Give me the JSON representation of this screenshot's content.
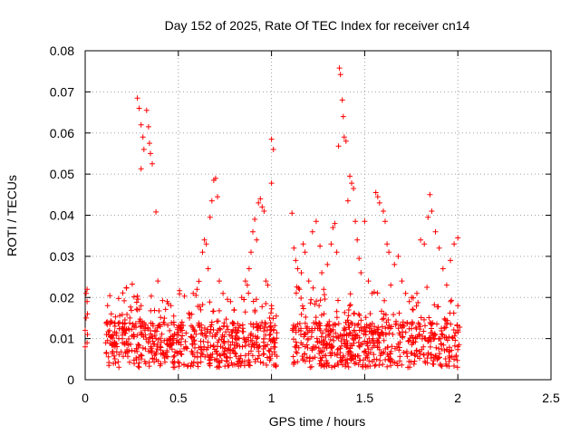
{
  "chart_data": {
    "type": "scatter",
    "title": "Day 152 of 2025, Rate Of TEC Index for receiver cn14",
    "xlabel": "GPS time / hours",
    "ylabel": "ROTI / TECUs",
    "xlim": [
      0,
      2.5
    ],
    "ylim": [
      0,
      0.08
    ],
    "xticks": [
      0,
      0.5,
      1,
      1.5,
      2,
      2.5
    ],
    "xtick_labels": [
      "0",
      "0.5",
      "1",
      "1.5",
      "2",
      "2.5"
    ],
    "yticks": [
      0,
      0.01,
      0.02,
      0.03,
      0.04,
      0.05,
      0.06,
      0.07,
      0.08
    ],
    "ytick_labels": [
      "0",
      "0.01",
      "0.02",
      "0.03",
      "0.04",
      "0.05",
      "0.06",
      "0.07",
      "0.08"
    ],
    "grid": true,
    "marker": "+",
    "series": [
      {
        "name": "cn14",
        "color": "#ff0000",
        "points": [
          [
            0.0,
            0.008
          ],
          [
            0.0,
            0.012
          ],
          [
            0.005,
            0.015
          ],
          [
            0.005,
            0.021
          ],
          [
            0.01,
            0.022
          ],
          [
            0.01,
            0.019
          ],
          [
            0.01,
            0.009
          ],
          [
            0.012,
            0.016
          ],
          [
            0.012,
            0.011
          ],
          [
            0.12,
            0.018
          ],
          [
            0.14,
            0.016
          ],
          [
            0.16,
            0.013
          ],
          [
            0.18,
            0.01
          ],
          [
            0.2,
            0.009
          ],
          [
            0.22,
            0.012
          ],
          [
            0.24,
            0.015
          ],
          [
            0.26,
            0.011
          ],
          [
            0.28,
            0.017
          ],
          [
            0.3,
            0.018
          ],
          [
            0.32,
            0.012
          ],
          [
            0.34,
            0.009
          ],
          [
            0.36,
            0.007
          ],
          [
            0.38,
            0.01
          ],
          [
            0.28,
            0.0685
          ],
          [
            0.29,
            0.066
          ],
          [
            0.3,
            0.062
          ],
          [
            0.31,
            0.059
          ],
          [
            0.315,
            0.056
          ],
          [
            0.3,
            0.0513
          ],
          [
            0.33,
            0.0655
          ],
          [
            0.34,
            0.0615
          ],
          [
            0.345,
            0.0575
          ],
          [
            0.35,
            0.055
          ],
          [
            0.36,
            0.0525
          ],
          [
            0.38,
            0.0408
          ],
          [
            0.39,
            0.024
          ],
          [
            0.42,
            0.014
          ],
          [
            0.44,
            0.019
          ],
          [
            0.46,
            0.018
          ],
          [
            0.48,
            0.011
          ],
          [
            0.5,
            0.009
          ],
          [
            0.52,
            0.012
          ],
          [
            0.54,
            0.008
          ],
          [
            0.56,
            0.015
          ],
          [
            0.58,
            0.021
          ],
          [
            0.6,
            0.022
          ],
          [
            0.62,
            0.017
          ],
          [
            0.63,
            0.031
          ],
          [
            0.64,
            0.034
          ],
          [
            0.65,
            0.033
          ],
          [
            0.66,
            0.027
          ],
          [
            0.67,
            0.0395
          ],
          [
            0.68,
            0.0435
          ],
          [
            0.69,
            0.0485
          ],
          [
            0.7,
            0.049
          ],
          [
            0.71,
            0.0445
          ],
          [
            0.72,
            0.024
          ],
          [
            0.74,
            0.021
          ],
          [
            0.76,
            0.013
          ],
          [
            0.78,
            0.019
          ],
          [
            0.8,
            0.017
          ],
          [
            0.82,
            0.012
          ],
          [
            0.84,
            0.02
          ],
          [
            0.86,
            0.024
          ],
          [
            0.87,
            0.023
          ],
          [
            0.88,
            0.027
          ],
          [
            0.89,
            0.031
          ],
          [
            0.9,
            0.036
          ],
          [
            0.91,
            0.039
          ],
          [
            0.92,
            0.034
          ],
          [
            0.93,
            0.043
          ],
          [
            0.94,
            0.044
          ],
          [
            0.95,
            0.042
          ],
          [
            0.96,
            0.041
          ],
          [
            0.97,
            0.024
          ],
          [
            0.98,
            0.023
          ],
          [
            0.99,
            0.015
          ],
          [
            1.0,
            0.0585
          ],
          [
            1.01,
            0.056
          ],
          [
            1.0,
            0.0478
          ],
          [
            1.0,
            0.018
          ],
          [
            1.01,
            0.012
          ],
          [
            1.02,
            0.009
          ],
          [
            1.11,
            0.0405
          ],
          [
            1.12,
            0.032
          ],
          [
            1.13,
            0.029
          ],
          [
            1.14,
            0.027
          ],
          [
            1.15,
            0.022
          ],
          [
            1.16,
            0.026
          ],
          [
            1.17,
            0.033
          ],
          [
            1.18,
            0.031
          ],
          [
            1.2,
            0.024
          ],
          [
            1.22,
            0.036
          ],
          [
            1.24,
            0.0385
          ],
          [
            1.26,
            0.0325
          ],
          [
            1.27,
            0.026
          ],
          [
            1.28,
            0.022
          ],
          [
            1.3,
            0.028
          ],
          [
            1.32,
            0.033
          ],
          [
            1.33,
            0.037
          ],
          [
            1.34,
            0.038
          ],
          [
            1.35,
            0.031
          ],
          [
            1.36,
            0.0568
          ],
          [
            1.365,
            0.0758
          ],
          [
            1.37,
            0.0742
          ],
          [
            1.38,
            0.068
          ],
          [
            1.385,
            0.064
          ],
          [
            1.39,
            0.059
          ],
          [
            1.4,
            0.058
          ],
          [
            1.41,
            0.0435
          ],
          [
            1.42,
            0.0495
          ],
          [
            1.43,
            0.0478
          ],
          [
            1.44,
            0.0465
          ],
          [
            1.45,
            0.0385
          ],
          [
            1.46,
            0.034
          ],
          [
            1.47,
            0.0295
          ],
          [
            1.48,
            0.026
          ],
          [
            1.5,
            0.0385
          ],
          [
            1.52,
            0.024
          ],
          [
            1.54,
            0.021
          ],
          [
            1.56,
            0.0455
          ],
          [
            1.57,
            0.0445
          ],
          [
            1.58,
            0.043
          ],
          [
            1.6,
            0.041
          ],
          [
            1.61,
            0.0385
          ],
          [
            1.62,
            0.033
          ],
          [
            1.63,
            0.031
          ],
          [
            1.64,
            0.023
          ],
          [
            1.66,
            0.028
          ],
          [
            1.68,
            0.03
          ],
          [
            1.7,
            0.024
          ],
          [
            1.72,
            0.021
          ],
          [
            1.74,
            0.019
          ],
          [
            1.76,
            0.017
          ],
          [
            1.78,
            0.021
          ],
          [
            1.8,
            0.034
          ],
          [
            1.82,
            0.033
          ],
          [
            1.84,
            0.0395
          ],
          [
            1.85,
            0.045
          ],
          [
            1.86,
            0.041
          ],
          [
            1.88,
            0.036
          ],
          [
            1.9,
            0.032
          ],
          [
            1.92,
            0.027
          ],
          [
            1.94,
            0.023
          ],
          [
            1.96,
            0.029
          ],
          [
            1.98,
            0.033
          ],
          [
            2.0,
            0.0345
          ],
          [
            2.0,
            0.018
          ],
          [
            2.0,
            0.012
          ]
        ]
      }
    ]
  }
}
